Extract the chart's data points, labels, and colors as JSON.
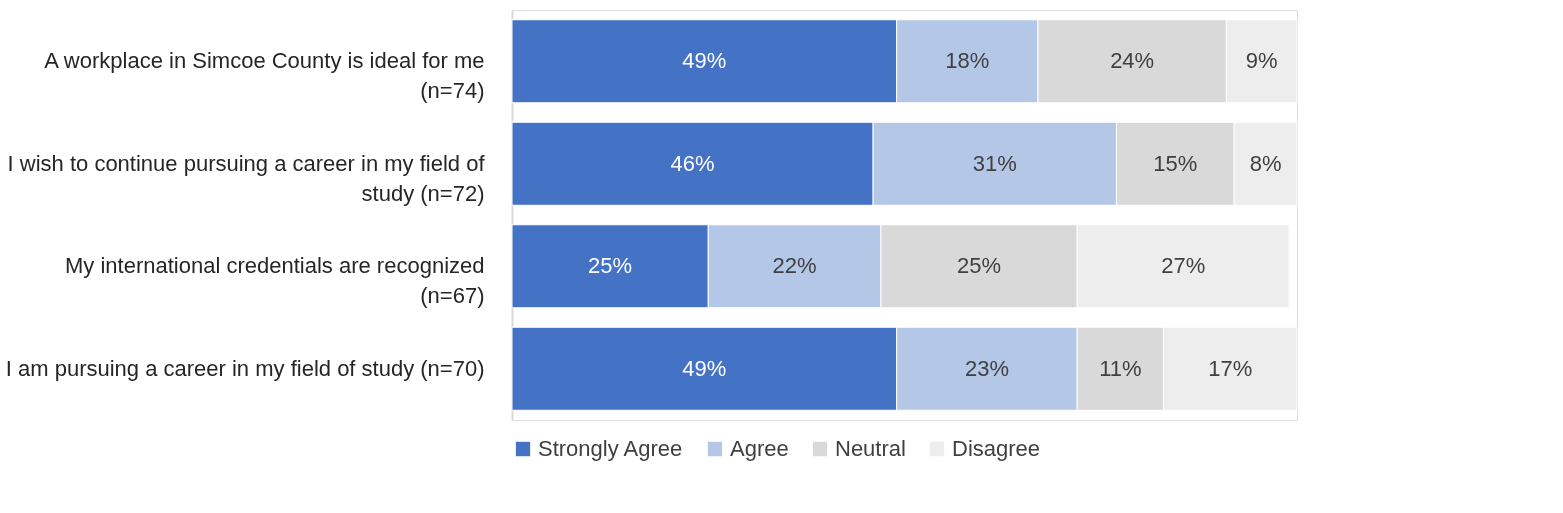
{
  "chart_data": {
    "type": "bar",
    "orientation": "horizontal",
    "stacked": true,
    "legend": "bottom",
    "grid": false,
    "categories": [
      "A workplace in Simcoe County is ideal for me\n(n=74)",
      "I wish to continue pursuing a career in my field of\nstudy (n=72)",
      "My international credentials are recognized\n(n=67)",
      "I am pursuing a career in my field of study (n=70)"
    ],
    "series": [
      {
        "name": "Strongly Agree",
        "color": "#4472c4",
        "values": [
          49,
          46,
          25,
          49
        ],
        "value_labels": [
          "49%",
          "46%",
          "25%",
          "49%"
        ]
      },
      {
        "name": "Agree",
        "color": "#b4c7e7",
        "values": [
          18,
          31,
          22,
          23
        ],
        "value_labels": [
          "18%",
          "31%",
          "22%",
          "23%"
        ]
      },
      {
        "name": "Neutral",
        "color": "#d9d9d9",
        "values": [
          24,
          15,
          25,
          11
        ],
        "value_labels": [
          "24%",
          "15%",
          "25%",
          "11%"
        ]
      },
      {
        "name": "Disagree",
        "color": "#ededed",
        "values": [
          9,
          8,
          27,
          17
        ],
        "value_labels": [
          "9%",
          "8%",
          "27%",
          "17%"
        ]
      }
    ]
  }
}
